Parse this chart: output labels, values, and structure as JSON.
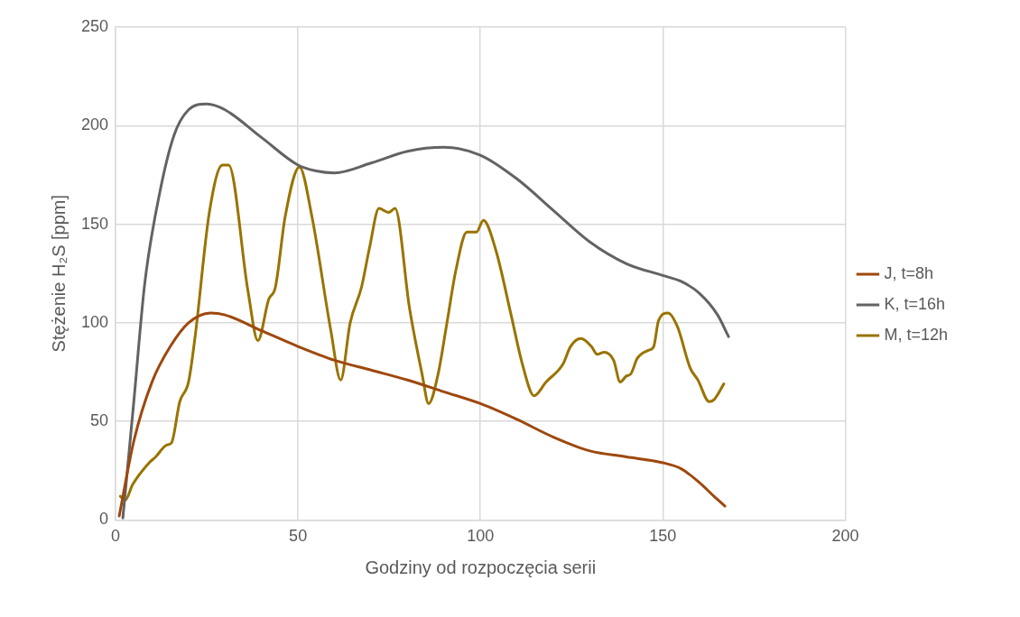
{
  "chart_data": {
    "type": "line",
    "xlabel": "Godziny od rozpoczęcia serii",
    "ylabel": "Stężenie H₂S [ppm]",
    "xlim": [
      0,
      200
    ],
    "xticks": [
      0,
      50,
      100,
      150,
      200
    ],
    "ylim": [
      0,
      250
    ],
    "yticks": [
      0,
      50,
      100,
      150,
      200,
      250
    ],
    "grid": true,
    "legend": "right",
    "marker": "none",
    "line_style": "solid",
    "series": [
      {
        "name": "J, t=8h",
        "color": "#9e480e",
        "x": [
          1,
          5,
          10,
          15,
          20,
          26,
          30,
          40,
          50,
          60,
          70,
          80,
          90,
          100,
          110,
          120,
          130,
          140,
          150,
          155,
          160,
          164,
          167
        ],
        "values": [
          2,
          40,
          70,
          88,
          100,
          105,
          104,
          96,
          88,
          81,
          76,
          71,
          65,
          59,
          51,
          42,
          35,
          32,
          29,
          26,
          19,
          12,
          7
        ]
      },
      {
        "name": "K, t=16h",
        "color": "#636363",
        "x": [
          2,
          5,
          8,
          12,
          16,
          20,
          25,
          30,
          40,
          50,
          55,
          60,
          70,
          80,
          90,
          100,
          110,
          120,
          130,
          140,
          150,
          155,
          160,
          165,
          168
        ],
        "values": [
          1,
          60,
          120,
          165,
          195,
          208,
          211,
          208,
          194,
          180,
          177,
          176,
          181,
          187,
          189,
          185,
          173,
          157,
          141,
          130,
          124,
          121,
          115,
          104,
          93
        ]
      },
      {
        "name": "M, t=12h",
        "color": "#997300",
        "x": [
          1.3,
          2.6,
          4.7,
          9.2,
          11,
          14,
          15.3,
          17.6,
          20,
          21.8,
          25.7,
          29.3,
          31,
          36.3,
          39,
          42,
          43.8,
          46.5,
          50.4,
          53.8,
          59,
          61.7,
          64.3,
          67.4,
          69.6,
          72.2,
          74.8,
          76.6,
          80.6,
          84,
          85.8,
          88.4,
          91,
          93.2,
          96.3,
          98.9,
          100.8,
          104.2,
          108.4,
          111.5,
          114.7,
          118,
          122.6,
          124.7,
          127.6,
          130.4,
          132,
          133.9,
          136.5,
          138.3,
          140,
          141.2,
          143,
          146,
          147.5,
          148.8,
          151.4,
          154,
          157.5,
          159.6,
          162.7,
          164,
          166.7
        ],
        "values": [
          12,
          10,
          18,
          29,
          32,
          38,
          39,
          60,
          70,
          93,
          156,
          180,
          180,
          116,
          91,
          112,
          118,
          154,
          179,
          154,
          96,
          71,
          100,
          118,
          138,
          158,
          156,
          158,
          107,
          74,
          59,
          74,
          102,
          126,
          146,
          146,
          152,
          137,
          104,
          79,
          63,
          70,
          79,
          88,
          92,
          88,
          84,
          85,
          81,
          70,
          73,
          74,
          82,
          86,
          88,
          101,
          105,
          98,
          77,
          71,
          60,
          61,
          69
        ]
      }
    ]
  }
}
